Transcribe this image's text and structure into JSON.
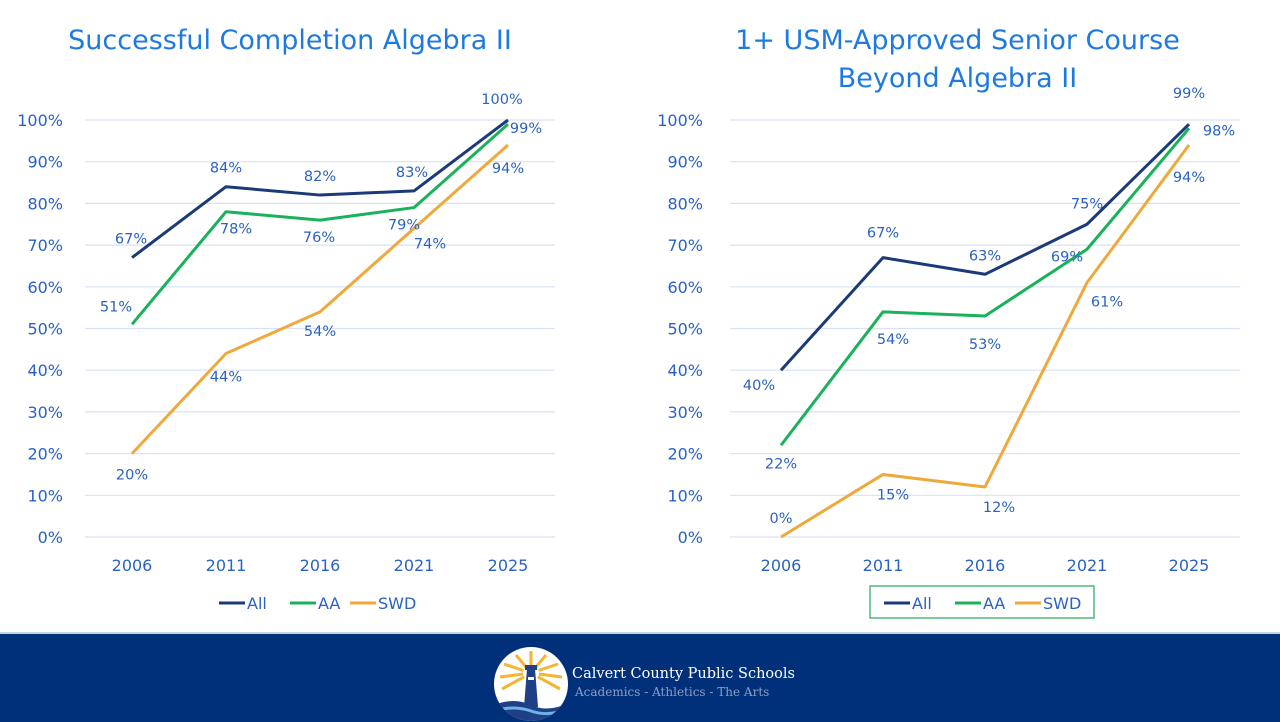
{
  "footer": {
    "org_name": "Calvert County Public Schools",
    "tagline": "Academics - Athletics - The Arts",
    "logo_icon": "lighthouse-logo-icon",
    "background": "#00307a"
  },
  "colors": {
    "All": "#1a3a78",
    "AA": "#19b25a",
    "SWD": "#eea93c",
    "text": "#2a62c4",
    "grid": "#d9e2f3",
    "legend_border": "#27a55a"
  },
  "chart_data": [
    {
      "type": "line",
      "title": "Successful Completion Algebra II",
      "title_lines": [
        "Successful Completion Algebra II"
      ],
      "xlabel": "",
      "ylabel": "",
      "categories": [
        "2006",
        "2011",
        "2016",
        "2021",
        "2025"
      ],
      "ylim": [
        0,
        100
      ],
      "yticks": [
        "0%",
        "10%",
        "20%",
        "30%",
        "40%",
        "50%",
        "60%",
        "70%",
        "80%",
        "90%",
        "100%"
      ],
      "grid": true,
      "legend": "bottom",
      "legend_boxed": false,
      "series": [
        {
          "name": "All",
          "values": [
            67,
            84,
            82,
            83,
            100
          ],
          "labels": [
            "67%",
            "84%",
            "82%",
            "83%",
            "100%"
          ]
        },
        {
          "name": "AA",
          "values": [
            51,
            78,
            76,
            79,
            99
          ],
          "labels": [
            "51%",
            "78%",
            "76%",
            "79%",
            "99%"
          ]
        },
        {
          "name": "SWD",
          "values": [
            20,
            44,
            54,
            74,
            94
          ],
          "labels": [
            "20%",
            "44%",
            "54%",
            "74%",
            "94%"
          ]
        }
      ]
    },
    {
      "type": "line",
      "title": "1+ USM-Approved Senior Course Beyond Algebra II",
      "title_lines": [
        "1+ USM-Approved Senior Course",
        "Beyond Algebra II"
      ],
      "xlabel": "",
      "ylabel": "",
      "categories": [
        "2006",
        "2011",
        "2016",
        "2021",
        "2025"
      ],
      "ylim": [
        0,
        100
      ],
      "yticks": [
        "0%",
        "10%",
        "20%",
        "30%",
        "40%",
        "50%",
        "60%",
        "70%",
        "80%",
        "90%",
        "100%"
      ],
      "grid": true,
      "legend": "bottom",
      "legend_boxed": true,
      "series": [
        {
          "name": "All",
          "values": [
            40,
            67,
            63,
            75,
            99
          ],
          "labels": [
            "40%",
            "67%",
            "63%",
            "75%",
            "99%"
          ]
        },
        {
          "name": "AA",
          "values": [
            22,
            54,
            53,
            69,
            98
          ],
          "labels": [
            "22%",
            "54%",
            "53%",
            "69%",
            "98%"
          ]
        },
        {
          "name": "SWD",
          "values": [
            0,
            15,
            12,
            61,
            94
          ],
          "labels": [
            "0%",
            "15%",
            "12%",
            "61%",
            "94%"
          ]
        }
      ]
    }
  ]
}
